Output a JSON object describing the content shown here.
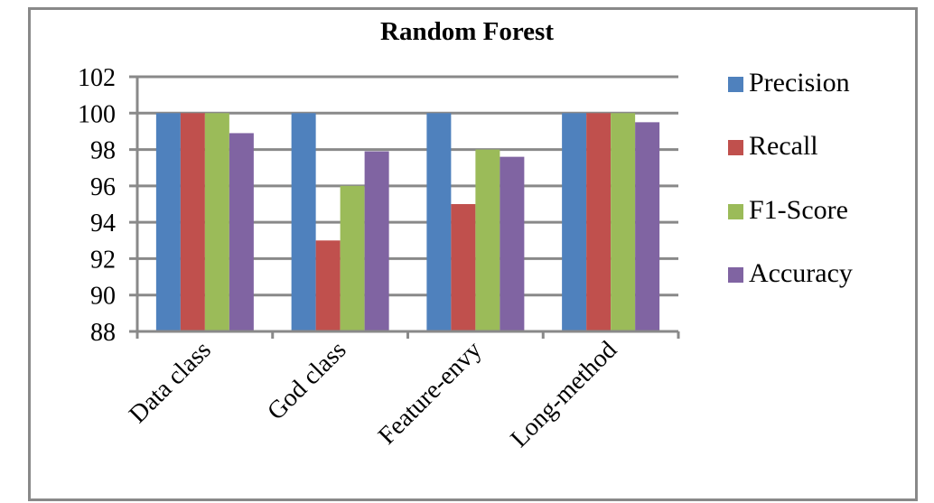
{
  "chart_data": {
    "type": "bar",
    "title": "Random Forest",
    "xlabel": "",
    "ylabel": "",
    "categories": [
      "Data class",
      "God class",
      "Feature-envy",
      "Long-method"
    ],
    "series": [
      {
        "name": "Precision",
        "color": "#4F81BD",
        "values": [
          100,
          100,
          100,
          100
        ]
      },
      {
        "name": "Recall",
        "color": "#C0504D",
        "values": [
          100,
          93,
          95,
          100
        ]
      },
      {
        "name": "F1-Score",
        "color": "#9BBB59",
        "values": [
          100,
          96,
          98,
          100
        ]
      },
      {
        "name": "Accuracy",
        "color": "#8064A2",
        "values": [
          98.9,
          97.9,
          97.6,
          99.5
        ]
      }
    ],
    "ylim": [
      88,
      102
    ],
    "yticks": [
      88,
      90,
      92,
      94,
      96,
      98,
      100,
      102
    ],
    "grid": true,
    "legend_position": "right"
  },
  "colors": {
    "grid": "#898989",
    "frame": "#898989"
  }
}
